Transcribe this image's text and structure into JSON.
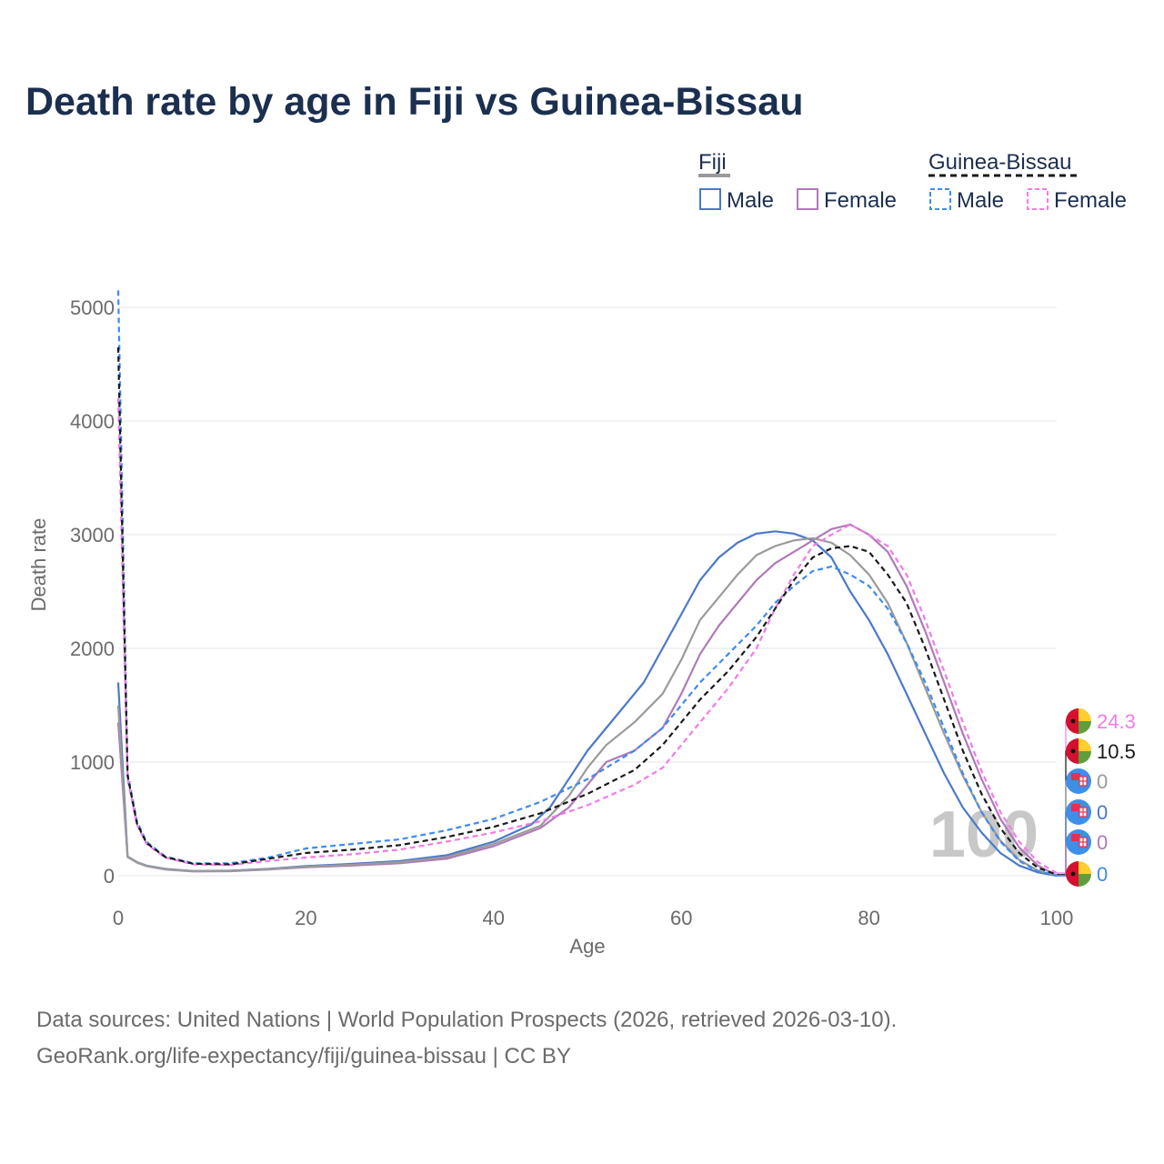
{
  "title": "Death rate by age in Fiji vs Guinea-Bissau",
  "colors": {
    "male": "#4a79c9",
    "female": "#b07ab8",
    "fiji_combined": "#9a9a9a",
    "gb_male": "#3d8bf2",
    "gb_female": "#f27ce6",
    "gb_combined": "#1a1a1a",
    "grid": "#e6e6e6",
    "watermark": "#c8c8c8"
  },
  "legend": {
    "groups": [
      {
        "name": "Fiji",
        "style": "solid",
        "items": [
          "Male",
          "Female"
        ]
      },
      {
        "name": "Guinea-Bissau",
        "style": "dashed",
        "items": [
          "Male",
          "Female"
        ]
      }
    ]
  },
  "watermark": "100",
  "end_labels": [
    {
      "text": "24.3",
      "series": "Guinea-Bissau Female",
      "flag": "guinea-bissau-flag-icon"
    },
    {
      "text": "10.5",
      "series": "Guinea-Bissau",
      "flag": "guinea-bissau-flag-icon"
    },
    {
      "text": "0",
      "series": "Fiji",
      "flag": "fiji-flag-icon"
    },
    {
      "text": "0",
      "series": "Fiji Male",
      "flag": "fiji-flag-icon"
    },
    {
      "text": "0",
      "series": "Fiji Female",
      "flag": "fiji-flag-icon"
    },
    {
      "text": "0",
      "series": "Guinea-Bissau Male",
      "flag": "guinea-bissau-flag-icon"
    }
  ],
  "sources": {
    "line1": "Data sources: United Nations | World Population Prospects (2026, retrieved 2026-03-10).",
    "line2": "GeoRank.org/life-expectancy/fiji/guinea-bissau | CC BY"
  },
  "chart_data": {
    "type": "line",
    "title": "Death rate by age in Fiji vs Guinea-Bissau",
    "xlabel": "Age",
    "ylabel": "Death rate",
    "xlim": [
      0,
      100
    ],
    "ylim": [
      0,
      5200
    ],
    "xticks": [
      0,
      20,
      40,
      60,
      80,
      100
    ],
    "yticks": [
      0,
      1000,
      2000,
      3000,
      4000,
      5000
    ],
    "grid": true,
    "series": [
      {
        "name": "Fiji Male",
        "country": "Fiji",
        "sex": "Male",
        "style": "solid",
        "color": "#4a79c9",
        "points": [
          [
            0,
            1700
          ],
          [
            1,
            170
          ],
          [
            2,
            120
          ],
          [
            3,
            90
          ],
          [
            5,
            60
          ],
          [
            8,
            42
          ],
          [
            12,
            45
          ],
          [
            16,
            60
          ],
          [
            20,
            85
          ],
          [
            25,
            105
          ],
          [
            30,
            130
          ],
          [
            35,
            180
          ],
          [
            40,
            300
          ],
          [
            44,
            450
          ],
          [
            46,
            600
          ],
          [
            48,
            850
          ],
          [
            50,
            1100
          ],
          [
            53,
            1400
          ],
          [
            56,
            1700
          ],
          [
            58,
            2000
          ],
          [
            60,
            2300
          ],
          [
            62,
            2600
          ],
          [
            64,
            2800
          ],
          [
            66,
            2930
          ],
          [
            68,
            3010
          ],
          [
            70,
            3030
          ],
          [
            72,
            3010
          ],
          [
            74,
            2950
          ],
          [
            76,
            2800
          ],
          [
            78,
            2500
          ],
          [
            80,
            2250
          ],
          [
            82,
            1950
          ],
          [
            84,
            1600
          ],
          [
            86,
            1250
          ],
          [
            88,
            900
          ],
          [
            90,
            600
          ],
          [
            92,
            380
          ],
          [
            94,
            200
          ],
          [
            96,
            90
          ],
          [
            98,
            30
          ],
          [
            100,
            0
          ]
        ]
      },
      {
        "name": "Fiji Female",
        "country": "Fiji",
        "sex": "Female",
        "style": "solid",
        "color": "#b07ab8",
        "points": [
          [
            0,
            1350
          ],
          [
            1,
            165
          ],
          [
            2,
            115
          ],
          [
            3,
            85
          ],
          [
            5,
            55
          ],
          [
            8,
            38
          ],
          [
            12,
            40
          ],
          [
            16,
            55
          ],
          [
            20,
            75
          ],
          [
            25,
            90
          ],
          [
            30,
            110
          ],
          [
            35,
            150
          ],
          [
            40,
            260
          ],
          [
            45,
            420
          ],
          [
            48,
            600
          ],
          [
            50,
            800
          ],
          [
            52,
            1000
          ],
          [
            55,
            1100
          ],
          [
            58,
            1300
          ],
          [
            60,
            1600
          ],
          [
            62,
            1950
          ],
          [
            64,
            2200
          ],
          [
            66,
            2400
          ],
          [
            68,
            2600
          ],
          [
            70,
            2750
          ],
          [
            72,
            2850
          ],
          [
            74,
            2950
          ],
          [
            76,
            3050
          ],
          [
            78,
            3090
          ],
          [
            80,
            3000
          ],
          [
            82,
            2850
          ],
          [
            84,
            2550
          ],
          [
            86,
            2150
          ],
          [
            88,
            1700
          ],
          [
            90,
            1250
          ],
          [
            92,
            850
          ],
          [
            94,
            500
          ],
          [
            96,
            250
          ],
          [
            98,
            90
          ],
          [
            100,
            0
          ]
        ]
      },
      {
        "name": "Fiji",
        "country": "Fiji",
        "sex": "Combined",
        "style": "solid",
        "color": "#9a9a9a",
        "points": [
          [
            0,
            1500
          ],
          [
            1,
            168
          ],
          [
            2,
            118
          ],
          [
            3,
            88
          ],
          [
            5,
            58
          ],
          [
            8,
            40
          ],
          [
            12,
            43
          ],
          [
            16,
            58
          ],
          [
            20,
            80
          ],
          [
            25,
            98
          ],
          [
            30,
            120
          ],
          [
            35,
            165
          ],
          [
            40,
            280
          ],
          [
            45,
            440
          ],
          [
            48,
            700
          ],
          [
            50,
            950
          ],
          [
            52,
            1150
          ],
          [
            55,
            1350
          ],
          [
            58,
            1600
          ],
          [
            60,
            1900
          ],
          [
            62,
            2250
          ],
          [
            64,
            2450
          ],
          [
            66,
            2650
          ],
          [
            68,
            2820
          ],
          [
            70,
            2900
          ],
          [
            72,
            2950
          ],
          [
            74,
            2970
          ],
          [
            76,
            2930
          ],
          [
            78,
            2820
          ],
          [
            80,
            2650
          ],
          [
            82,
            2400
          ],
          [
            84,
            2050
          ],
          [
            86,
            1650
          ],
          [
            88,
            1250
          ],
          [
            90,
            880
          ],
          [
            92,
            560
          ],
          [
            94,
            310
          ],
          [
            96,
            140
          ],
          [
            98,
            45
          ],
          [
            100,
            0
          ]
        ]
      },
      {
        "name": "Guinea-Bissau Male",
        "country": "Guinea-Bissau",
        "sex": "Male",
        "style": "dashed",
        "color": "#3d8bf2",
        "points": [
          [
            0,
            5150
          ],
          [
            1,
            900
          ],
          [
            2,
            480
          ],
          [
            3,
            300
          ],
          [
            5,
            170
          ],
          [
            8,
            110
          ],
          [
            12,
            110
          ],
          [
            16,
            160
          ],
          [
            20,
            240
          ],
          [
            25,
            280
          ],
          [
            30,
            320
          ],
          [
            35,
            400
          ],
          [
            40,
            500
          ],
          [
            45,
            650
          ],
          [
            50,
            850
          ],
          [
            55,
            1100
          ],
          [
            58,
            1300
          ],
          [
            60,
            1500
          ],
          [
            62,
            1700
          ],
          [
            65,
            1950
          ],
          [
            68,
            2200
          ],
          [
            70,
            2400
          ],
          [
            72,
            2550
          ],
          [
            74,
            2680
          ],
          [
            76,
            2720
          ],
          [
            78,
            2650
          ],
          [
            80,
            2550
          ],
          [
            82,
            2350
          ],
          [
            84,
            2050
          ],
          [
            86,
            1700
          ],
          [
            88,
            1300
          ],
          [
            90,
            900
          ],
          [
            92,
            560
          ],
          [
            94,
            300
          ],
          [
            96,
            130
          ],
          [
            98,
            40
          ],
          [
            100,
            0
          ]
        ]
      },
      {
        "name": "Guinea-Bissau Female",
        "country": "Guinea-Bissau",
        "sex": "Female",
        "style": "dashed",
        "color": "#f27ce6",
        "points": [
          [
            0,
            4200
          ],
          [
            1,
            850
          ],
          [
            2,
            450
          ],
          [
            3,
            280
          ],
          [
            5,
            160
          ],
          [
            8,
            100
          ],
          [
            12,
            95
          ],
          [
            16,
            130
          ],
          [
            20,
            160
          ],
          [
            25,
            190
          ],
          [
            30,
            230
          ],
          [
            35,
            300
          ],
          [
            40,
            380
          ],
          [
            45,
            480
          ],
          [
            50,
            620
          ],
          [
            55,
            800
          ],
          [
            58,
            950
          ],
          [
            60,
            1150
          ],
          [
            62,
            1350
          ],
          [
            65,
            1650
          ],
          [
            68,
            2000
          ],
          [
            70,
            2350
          ],
          [
            72,
            2650
          ],
          [
            74,
            2900
          ],
          [
            76,
            3000
          ],
          [
            78,
            3090
          ],
          [
            80,
            3000
          ],
          [
            82,
            2900
          ],
          [
            84,
            2650
          ],
          [
            86,
            2250
          ],
          [
            88,
            1800
          ],
          [
            90,
            1350
          ],
          [
            92,
            920
          ],
          [
            94,
            560
          ],
          [
            96,
            300
          ],
          [
            98,
            120
          ],
          [
            100,
            24.3
          ]
        ]
      },
      {
        "name": "Guinea-Bissau",
        "country": "Guinea-Bissau",
        "sex": "Combined",
        "style": "dashed",
        "color": "#1a1a1a",
        "points": [
          [
            0,
            4650
          ],
          [
            1,
            880
          ],
          [
            2,
            460
          ],
          [
            3,
            290
          ],
          [
            5,
            165
          ],
          [
            8,
            105
          ],
          [
            12,
            100
          ],
          [
            16,
            150
          ],
          [
            20,
            200
          ],
          [
            25,
            230
          ],
          [
            30,
            270
          ],
          [
            35,
            340
          ],
          [
            40,
            430
          ],
          [
            45,
            550
          ],
          [
            50,
            720
          ],
          [
            55,
            930
          ],
          [
            58,
            1150
          ],
          [
            60,
            1350
          ],
          [
            62,
            1550
          ],
          [
            65,
            1800
          ],
          [
            68,
            2100
          ],
          [
            70,
            2350
          ],
          [
            72,
            2600
          ],
          [
            74,
            2800
          ],
          [
            76,
            2880
          ],
          [
            78,
            2900
          ],
          [
            80,
            2850
          ],
          [
            82,
            2650
          ],
          [
            84,
            2400
          ],
          [
            86,
            2000
          ],
          [
            88,
            1550
          ],
          [
            90,
            1100
          ],
          [
            92,
            720
          ],
          [
            94,
            420
          ],
          [
            96,
            200
          ],
          [
            98,
            70
          ],
          [
            100,
            10.5
          ]
        ]
      }
    ]
  }
}
